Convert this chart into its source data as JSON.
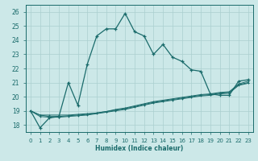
{
  "xlabel": "Humidex (Indice chaleur)",
  "ylabel": "",
  "xlim": [
    -0.5,
    23.5
  ],
  "ylim": [
    17.5,
    26.5
  ],
  "yticks": [
    18,
    19,
    20,
    21,
    22,
    23,
    24,
    25,
    26
  ],
  "xticks": [
    0,
    1,
    2,
    3,
    4,
    5,
    6,
    7,
    8,
    9,
    10,
    11,
    12,
    13,
    14,
    15,
    16,
    17,
    18,
    19,
    20,
    21,
    22,
    23
  ],
  "bg_color": "#cce8e8",
  "line_color": "#1a6b6b",
  "grid_color": "#aacfcf",
  "series": [
    [
      19.0,
      17.8,
      18.5,
      18.6,
      21.0,
      19.4,
      22.3,
      24.3,
      24.8,
      24.8,
      25.9,
      24.6,
      24.3,
      23.0,
      23.7,
      22.8,
      22.5,
      21.9,
      21.8,
      20.2,
      20.1,
      20.1,
      21.1,
      21.2
    ],
    [
      19.0,
      18.7,
      18.7,
      18.7,
      18.7,
      18.75,
      18.8,
      18.85,
      18.95,
      19.1,
      19.2,
      19.35,
      19.5,
      19.65,
      19.75,
      19.85,
      19.95,
      20.05,
      20.15,
      20.2,
      20.3,
      20.35,
      20.9,
      21.1
    ],
    [
      19.0,
      18.7,
      18.6,
      18.6,
      18.65,
      18.7,
      18.75,
      18.85,
      18.95,
      19.05,
      19.15,
      19.3,
      19.45,
      19.6,
      19.7,
      19.8,
      19.9,
      20.0,
      20.1,
      20.15,
      20.25,
      20.3,
      20.85,
      21.0
    ],
    [
      19.0,
      18.6,
      18.55,
      18.55,
      18.6,
      18.65,
      18.7,
      18.8,
      18.9,
      19.0,
      19.1,
      19.25,
      19.4,
      19.55,
      19.65,
      19.75,
      19.85,
      19.95,
      20.05,
      20.1,
      20.2,
      20.25,
      20.8,
      20.95
    ]
  ]
}
